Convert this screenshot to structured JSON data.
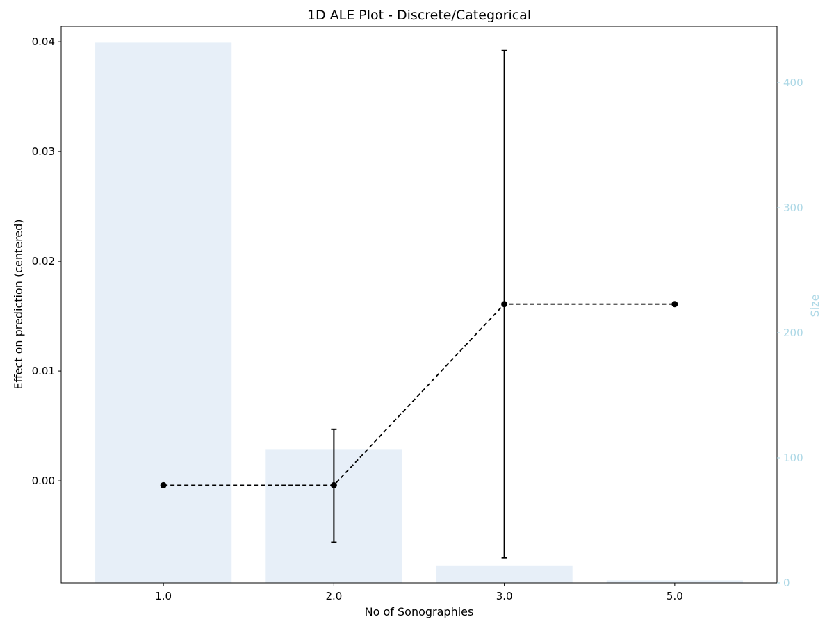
{
  "chart_data": {
    "type": "bar+line",
    "title": "1D ALE Plot - Discrete/Categorical",
    "xlabel": "No of Sonographies",
    "ylabel": "Effect on prediction (centered)",
    "y2label": "Size",
    "categories": [
      "1.0",
      "2.0",
      "3.0",
      "5.0"
    ],
    "ylim": [
      -0.0093,
      0.0414
    ],
    "y2lim": [
      0,
      445
    ],
    "yticks": [
      "0.00",
      "0.01",
      "0.02",
      "0.03",
      "0.04"
    ],
    "y2ticks": [
      "0",
      "100",
      "200",
      "300",
      "400"
    ],
    "grid": false,
    "series": [
      {
        "type": "bar",
        "axis": "right",
        "color": "#e7eff8",
        "values": [
          432,
          107,
          14,
          2
        ]
      },
      {
        "type": "line",
        "axis": "left",
        "style": "dashed",
        "color": "#000000",
        "marker": "circle",
        "values": [
          -0.0004,
          -0.0004,
          0.0161,
          0.0161
        ],
        "error_low": [
          null,
          -0.0056,
          -0.007,
          null
        ],
        "error_high": [
          null,
          0.0047,
          0.0392,
          null
        ]
      }
    ],
    "colors": {
      "bar": "#e7eff8",
      "line": "#000000",
      "right_axis": "#add8e6"
    }
  }
}
